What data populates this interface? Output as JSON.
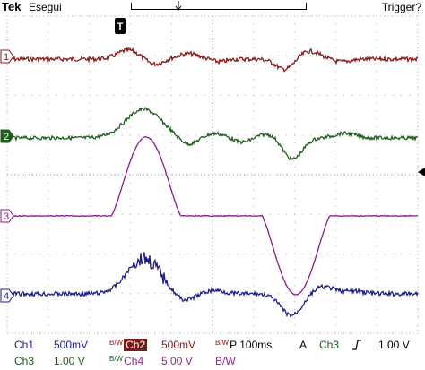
{
  "header": {
    "brand": "Tek",
    "mode": "Esegui",
    "trigger_status": "Trigger?"
  },
  "channels": [
    {
      "id": "1",
      "color": "#8b1a1a"
    },
    {
      "id": "2",
      "color": "#1f5c1f"
    },
    {
      "id": "3",
      "color": "#8a1a8a"
    },
    {
      "id": "4",
      "color": "#1c1c8c"
    }
  ],
  "readout": {
    "ch1_label": "Ch1",
    "ch1_scale": "500mV",
    "ch2_label": "Ch2",
    "ch2_scale": "500mV",
    "ch3_label": "Ch3",
    "ch3_scale": "1.00 V",
    "ch4_label": "Ch4",
    "ch4_scale": "5.00 V",
    "timebase": "P 100ms",
    "trigger_mode": "A",
    "trigger_source": "Ch3",
    "trigger_level": "1.00 V"
  }
}
